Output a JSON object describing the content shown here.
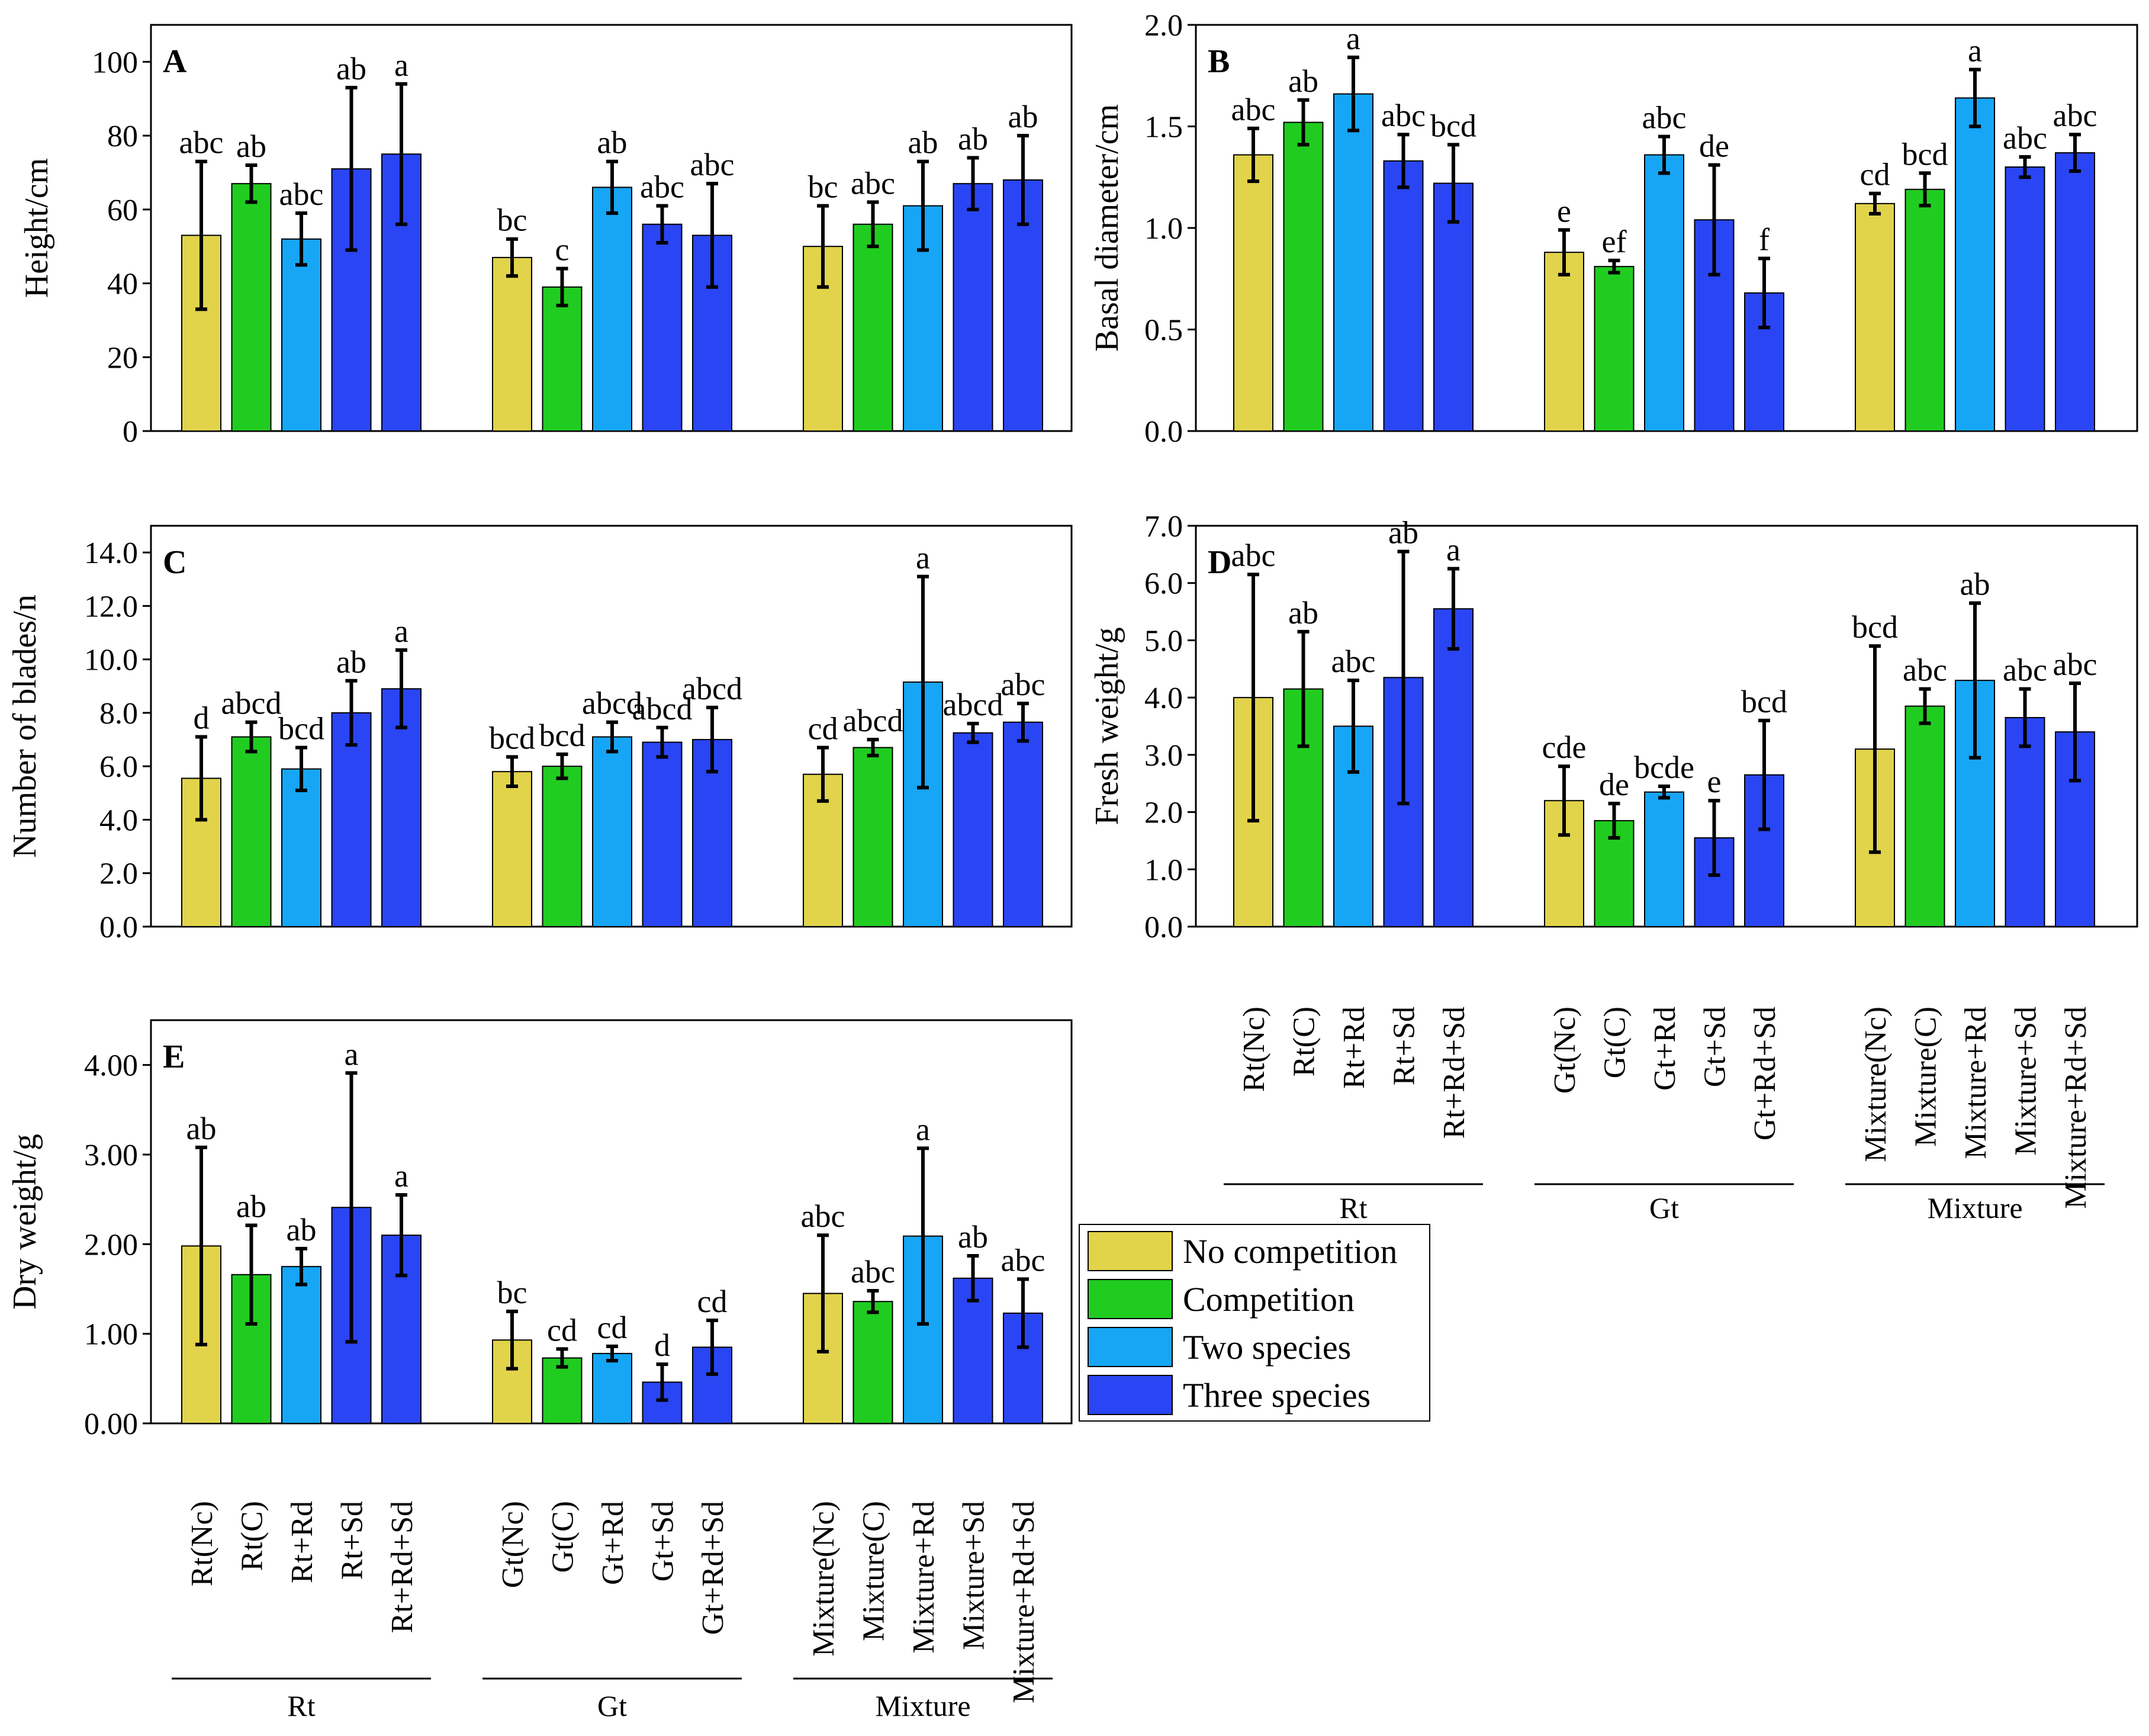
{
  "colors": {
    "no_competition": "#E1D34A",
    "competition": "#21CC21",
    "two_species": "#16A6F5",
    "three_species": "#2A45F3",
    "axis": "#000000",
    "background": "#FFFFFF"
  },
  "legend": {
    "items": [
      {
        "label": "No competition",
        "color_key": "no_competition"
      },
      {
        "label": "Competition",
        "color_key": "competition"
      },
      {
        "label": "Two species",
        "color_key": "two_species"
      },
      {
        "label": "Three species",
        "color_key": "three_species"
      }
    ]
  },
  "axis_labels": {
    "categories": [
      "Rt(Nc)",
      "Rt(C)",
      "Rt+Rd",
      "Rt+Sd",
      "Rt+Rd+Sd",
      "Gt(Nc)",
      "Gt(C)",
      "Gt+Rd",
      "Gt+Sd",
      "Gt+Rd+Sd",
      "Mixture(Nc)",
      "Mixture(C)",
      "Mixture+Rd",
      "Mixture+Sd",
      "Mixture+Rd+Sd"
    ],
    "groups": [
      "Rt",
      "Gt",
      "Mixture"
    ]
  },
  "chart_data": [
    {
      "id": "A",
      "type": "bar",
      "title": "A",
      "ylabel": "Height/cm",
      "xlabel": "",
      "ylim": [
        0,
        110
      ],
      "yticks": [
        0,
        20,
        40,
        60,
        80,
        100
      ],
      "ytick_labels": [
        "0",
        "20",
        "40",
        "60",
        "80",
        "100"
      ],
      "categories": [
        "Rt(Nc)",
        "Rt(C)",
        "Rt+Rd",
        "Rt+Sd",
        "Rt+Rd+Sd",
        "Gt(Nc)",
        "Gt(C)",
        "Gt+Rd",
        "Gt+Sd",
        "Gt+Rd+Sd",
        "Mixture(Nc)",
        "Mixture(C)",
        "Mixture+Rd",
        "Mixture+Sd",
        "Mixture+Rd+Sd"
      ],
      "values": [
        53,
        67,
        52,
        71,
        75,
        47,
        39,
        66,
        56,
        53,
        50,
        56,
        61,
        67,
        68
      ],
      "errors": [
        20,
        5,
        7,
        22,
        19,
        5,
        5,
        7,
        5,
        14,
        11,
        6,
        12,
        7,
        12
      ],
      "letters": [
        "abc",
        "ab",
        "abc",
        "ab",
        "a",
        "bc",
        "c",
        "ab",
        "abc",
        "abc",
        "bc",
        "abc",
        "ab",
        "ab",
        "ab"
      ]
    },
    {
      "id": "B",
      "type": "bar",
      "title": "B",
      "ylabel": "Basal diameter/cm",
      "xlabel": "",
      "ylim": [
        0,
        2.0
      ],
      "yticks": [
        0,
        0.5,
        1.0,
        1.5,
        2.0
      ],
      "ytick_labels": [
        "0.0",
        "0.5",
        "1.0",
        "1.5",
        "2.0"
      ],
      "categories": [
        "Rt(Nc)",
        "Rt(C)",
        "Rt+Rd",
        "Rt+Sd",
        "Rt+Rd+Sd",
        "Gt(Nc)",
        "Gt(C)",
        "Gt+Rd",
        "Gt+Sd",
        "Gt+Rd+Sd",
        "Mixture(Nc)",
        "Mixture(C)",
        "Mixture+Rd",
        "Mixture+Sd",
        "Mixture+Rd+Sd"
      ],
      "values": [
        1.36,
        1.52,
        1.66,
        1.33,
        1.22,
        0.88,
        0.81,
        1.36,
        1.04,
        0.68,
        1.12,
        1.19,
        1.64,
        1.3,
        1.37
      ],
      "errors": [
        0.13,
        0.11,
        0.18,
        0.13,
        0.19,
        0.11,
        0.03,
        0.09,
        0.27,
        0.17,
        0.05,
        0.08,
        0.14,
        0.05,
        0.09
      ],
      "letters": [
        "abc",
        "ab",
        "a",
        "abc",
        "bcd",
        "e",
        "ef",
        "abc",
        "de",
        "f",
        "cd",
        "bcd",
        "a",
        "abc",
        "abc"
      ]
    },
    {
      "id": "C",
      "type": "bar",
      "title": "C",
      "ylabel": "Number of blades/n",
      "xlabel": "",
      "ylim": [
        0,
        15
      ],
      "yticks": [
        0,
        2,
        4,
        6,
        8,
        10,
        12,
        14
      ],
      "ytick_labels": [
        "0.0",
        "2.0",
        "4.0",
        "6.0",
        "8.0",
        "10.0",
        "12.0",
        "14.0"
      ],
      "categories": [
        "Rt(Nc)",
        "Rt(C)",
        "Rt+Rd",
        "Rt+Sd",
        "Rt+Rd+Sd",
        "Gt(Nc)",
        "Gt(C)",
        "Gt+Rd",
        "Gt+Sd",
        "Gt+Rd+Sd",
        "Mixture(Nc)",
        "Mixture(C)",
        "Mixture+Rd",
        "Mixture+Sd",
        "Mixture+Rd+Sd"
      ],
      "values": [
        5.55,
        7.1,
        5.9,
        8.0,
        8.9,
        5.8,
        6.0,
        7.1,
        6.9,
        7.0,
        5.7,
        6.7,
        9.15,
        7.25,
        7.65
      ],
      "errors": [
        1.55,
        0.55,
        0.8,
        1.2,
        1.45,
        0.55,
        0.45,
        0.55,
        0.55,
        1.2,
        1.0,
        0.3,
        3.95,
        0.35,
        0.7
      ],
      "letters": [
        "d",
        "abcd",
        "bcd",
        "ab",
        "a",
        "bcd",
        "bcd",
        "abcd",
        "abcd",
        "abcd",
        "cd",
        "abcd",
        "a",
        "abcd",
        "abc"
      ]
    },
    {
      "id": "D",
      "type": "bar",
      "title": "D",
      "ylabel": "Fresh weight/g",
      "xlabel": "",
      "ylim": [
        0,
        7.0
      ],
      "yticks": [
        0,
        1,
        2,
        3,
        4,
        5,
        6,
        7
      ],
      "ytick_labels": [
        "0.0",
        "1.0",
        "2.0",
        "3.0",
        "4.0",
        "5.0",
        "6.0",
        "7.0"
      ],
      "categories": [
        "Rt(Nc)",
        "Rt(C)",
        "Rt+Rd",
        "Rt+Sd",
        "Rt+Rd+Sd",
        "Gt(Nc)",
        "Gt(C)",
        "Gt+Rd",
        "Gt+Sd",
        "Gt+Rd+Sd",
        "Mixture(Nc)",
        "Mixture(C)",
        "Mixture+Rd",
        "Mixture+Sd",
        "Mixture+Rd+Sd"
      ],
      "values": [
        4.0,
        4.15,
        3.5,
        4.35,
        5.55,
        2.2,
        1.85,
        2.35,
        1.55,
        2.65,
        3.1,
        3.85,
        4.3,
        3.65,
        3.4
      ],
      "errors": [
        2.15,
        1.0,
        0.8,
        2.2,
        0.7,
        0.6,
        0.3,
        0.1,
        0.65,
        0.95,
        1.8,
        0.3,
        1.35,
        0.5,
        0.85
      ],
      "letters": [
        "abc",
        "ab",
        "abc",
        "ab",
        "a",
        "cde",
        "de",
        "bcde",
        "e",
        "bcd",
        "bcd",
        "abc",
        "ab",
        "abc",
        "abc"
      ]
    },
    {
      "id": "E",
      "type": "bar",
      "title": "E",
      "ylabel": "Dry weight/g",
      "xlabel": "",
      "ylim": [
        0,
        4.5
      ],
      "yticks": [
        0,
        1,
        2,
        3,
        4
      ],
      "ytick_labels": [
        "0.00",
        "1.00",
        "2.00",
        "3.00",
        "4.00"
      ],
      "categories": [
        "Rt(Nc)",
        "Rt(C)",
        "Rt+Rd",
        "Rt+Sd",
        "Rt+Rd+Sd",
        "Gt(Nc)",
        "Gt(C)",
        "Gt+Rd",
        "Gt+Sd",
        "Gt+Rd+Sd",
        "Mixture(Nc)",
        "Mixture(C)",
        "Mixture+Rd",
        "Mixture+Sd",
        "Mixture+Rd+Sd"
      ],
      "values": [
        1.98,
        1.66,
        1.75,
        2.41,
        2.1,
        0.93,
        0.73,
        0.78,
        0.46,
        0.85,
        1.45,
        1.36,
        2.09,
        1.62,
        1.23
      ],
      "errors": [
        1.1,
        0.55,
        0.2,
        1.5,
        0.45,
        0.32,
        0.1,
        0.08,
        0.2,
        0.3,
        0.65,
        0.12,
        0.98,
        0.25,
        0.38
      ],
      "letters": [
        "ab",
        "ab",
        "ab",
        "a",
        "a",
        "bc",
        "cd",
        "cd",
        "d",
        "cd",
        "abc",
        "abc",
        "a",
        "ab",
        "abc"
      ]
    }
  ]
}
